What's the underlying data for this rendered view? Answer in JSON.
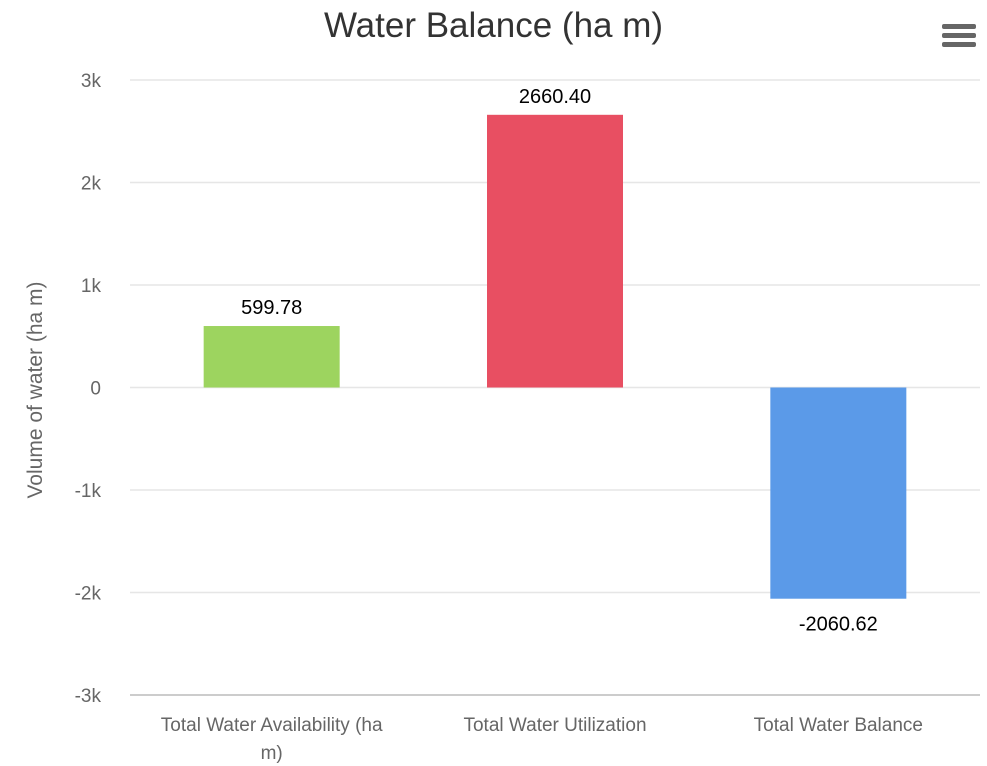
{
  "chart_data": {
    "type": "bar",
    "title": "Water Balance (ha m)",
    "ylabel": "Volume of water (ha m)",
    "xlabel": "",
    "categories": [
      [
        "Total Water Availability (ha",
        "m)"
      ],
      [
        "Total Water Utilization"
      ],
      [
        "Total Water Balance"
      ]
    ],
    "values": [
      599.78,
      2660.4,
      -2060.62
    ],
    "data_labels": [
      "599.78",
      "2660.40",
      "-2060.62"
    ],
    "colors": [
      "#9dd45f",
      "#e84f62",
      "#5b9ae8"
    ],
    "ylim": [
      -3000,
      3000
    ],
    "yticks": [
      3000,
      2000,
      1000,
      0,
      -1000,
      -2000,
      -3000
    ],
    "ytick_labels": [
      "3k",
      "2k",
      "1k",
      "0",
      "-1k",
      "-2k",
      "-3k"
    ],
    "grid": true,
    "legend": "none"
  },
  "menu": {
    "icon": "hamburger-menu-icon"
  }
}
